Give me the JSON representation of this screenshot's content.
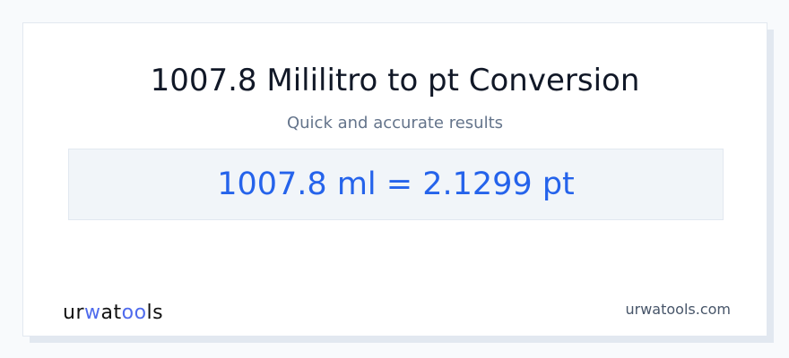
{
  "colors": {
    "accent": "#2563eb",
    "logo_accent": "#4f6bed",
    "background": "#f8fafc"
  },
  "header": {
    "title": "1007.8 Mililitro to pt Conversion",
    "subtitle": "Quick and accurate results"
  },
  "result": {
    "text": "1007.8 ml = 2.1299 pt"
  },
  "footer": {
    "logo": {
      "p1": "ur",
      "p2": "w",
      "p3": "at",
      "p4": "oo",
      "p5": "ls"
    },
    "site": "urwatools.com"
  }
}
